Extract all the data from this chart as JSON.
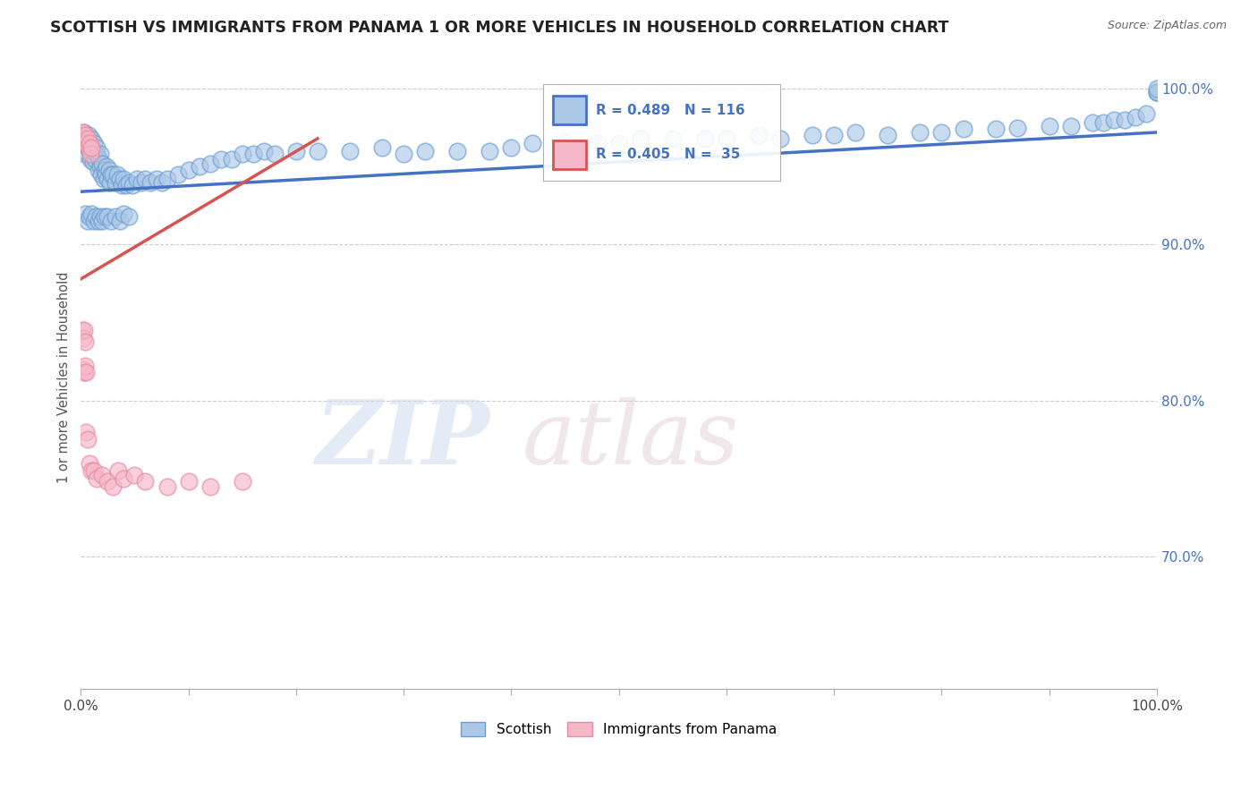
{
  "title": "SCOTTISH VS IMMIGRANTS FROM PANAMA 1 OR MORE VEHICLES IN HOUSEHOLD CORRELATION CHART",
  "source": "Source: ZipAtlas.com",
  "ylabel": "1 or more Vehicles in Household",
  "xlim": [
    0.0,
    1.0
  ],
  "ylim": [
    0.615,
    1.015
  ],
  "ytick_vals": [
    0.7,
    0.8,
    0.9,
    1.0
  ],
  "ytick_labels": [
    "70.0%",
    "80.0%",
    "90.0%",
    "100.0%"
  ],
  "xtick_vals": [
    0.0,
    0.1,
    0.2,
    0.3,
    0.4,
    0.5,
    0.6,
    0.7,
    0.8,
    0.9,
    1.0
  ],
  "xtick_labels": [
    "0.0%",
    "",
    "",
    "",
    "",
    "",
    "",
    "",
    "",
    "",
    "100.0%"
  ],
  "scottish_color": "#adc8e6",
  "scottish_edge": "#6a9fd4",
  "panama_color": "#f5b8c8",
  "panama_edge": "#e88aa0",
  "trendline_scottish_color": "#4472c4",
  "trendline_panama_color": "#d9534f",
  "grid_color": "#cccccc",
  "watermark_zip_color": "#ccddf0",
  "watermark_atlas_color": "#e0c8d0",
  "scottish_x": [
    0.001,
    0.002,
    0.003,
    0.003,
    0.004,
    0.005,
    0.005,
    0.006,
    0.007,
    0.008,
    0.009,
    0.01,
    0.01,
    0.011,
    0.012,
    0.012,
    0.013,
    0.014,
    0.015,
    0.015,
    0.016,
    0.017,
    0.018,
    0.018,
    0.019,
    0.02,
    0.021,
    0.022,
    0.023,
    0.024,
    0.025,
    0.026,
    0.027,
    0.028,
    0.03,
    0.032,
    0.034,
    0.036,
    0.038,
    0.04,
    0.042,
    0.045,
    0.048,
    0.052,
    0.056,
    0.06,
    0.065,
    0.07,
    0.075,
    0.08,
    0.09,
    0.1,
    0.11,
    0.12,
    0.13,
    0.14,
    0.15,
    0.16,
    0.17,
    0.18,
    0.2,
    0.22,
    0.25,
    0.28,
    0.3,
    0.32,
    0.35,
    0.38,
    0.4,
    0.42,
    0.45,
    0.48,
    0.5,
    0.52,
    0.55,
    0.58,
    0.6,
    0.63,
    0.65,
    0.68,
    0.7,
    0.72,
    0.75,
    0.78,
    0.8,
    0.82,
    0.85,
    0.87,
    0.9,
    0.92,
    0.94,
    0.95,
    0.96,
    0.97,
    0.98,
    0.99,
    1.0,
    1.0,
    1.0,
    1.0,
    0.004,
    0.006,
    0.008,
    0.01,
    0.012,
    0.014,
    0.016,
    0.018,
    0.02,
    0.022,
    0.025,
    0.028,
    0.032,
    0.036,
    0.04,
    0.045
  ],
  "scottish_y": [
    0.965,
    0.97,
    0.96,
    0.972,
    0.958,
    0.965,
    0.968,
    0.962,
    0.97,
    0.965,
    0.955,
    0.96,
    0.968,
    0.953,
    0.96,
    0.965,
    0.955,
    0.958,
    0.962,
    0.958,
    0.948,
    0.955,
    0.95,
    0.958,
    0.945,
    0.952,
    0.942,
    0.948,
    0.945,
    0.95,
    0.942,
    0.948,
    0.94,
    0.945,
    0.945,
    0.94,
    0.945,
    0.942,
    0.938,
    0.942,
    0.938,
    0.94,
    0.938,
    0.942,
    0.94,
    0.942,
    0.94,
    0.942,
    0.94,
    0.942,
    0.945,
    0.948,
    0.95,
    0.952,
    0.955,
    0.955,
    0.958,
    0.958,
    0.96,
    0.958,
    0.96,
    0.96,
    0.96,
    0.962,
    0.958,
    0.96,
    0.96,
    0.96,
    0.962,
    0.965,
    0.965,
    0.965,
    0.965,
    0.968,
    0.968,
    0.968,
    0.968,
    0.97,
    0.968,
    0.97,
    0.97,
    0.972,
    0.97,
    0.972,
    0.972,
    0.974,
    0.974,
    0.975,
    0.976,
    0.976,
    0.978,
    0.978,
    0.98,
    0.98,
    0.982,
    0.984,
    0.998,
    0.998,
    0.998,
    1.0,
    0.92,
    0.915,
    0.918,
    0.92,
    0.915,
    0.918,
    0.915,
    0.918,
    0.915,
    0.918,
    0.918,
    0.915,
    0.918,
    0.915,
    0.92,
    0.918
  ],
  "panama_x": [
    0.001,
    0.002,
    0.003,
    0.004,
    0.005,
    0.006,
    0.007,
    0.008,
    0.009,
    0.01,
    0.001,
    0.002,
    0.003,
    0.004,
    0.002,
    0.003,
    0.004,
    0.005,
    0.005,
    0.006,
    0.008,
    0.01,
    0.012,
    0.015,
    0.02,
    0.025,
    0.03,
    0.035,
    0.04,
    0.05,
    0.06,
    0.08,
    0.1,
    0.12,
    0.15
  ],
  "panama_y": [
    0.968,
    0.972,
    0.968,
    0.97,
    0.965,
    0.968,
    0.962,
    0.965,
    0.958,
    0.962,
    0.845,
    0.84,
    0.845,
    0.838,
    0.82,
    0.818,
    0.822,
    0.818,
    0.78,
    0.775,
    0.76,
    0.755,
    0.755,
    0.75,
    0.752,
    0.748,
    0.745,
    0.755,
    0.75,
    0.752,
    0.748,
    0.745,
    0.748,
    0.745,
    0.748
  ],
  "scottish_trendline_x": [
    0.0,
    1.0
  ],
  "scottish_trendline_y": [
    0.934,
    0.972
  ],
  "panama_trendline_x": [
    0.0,
    0.22
  ],
  "panama_trendline_y": [
    0.878,
    0.968
  ]
}
